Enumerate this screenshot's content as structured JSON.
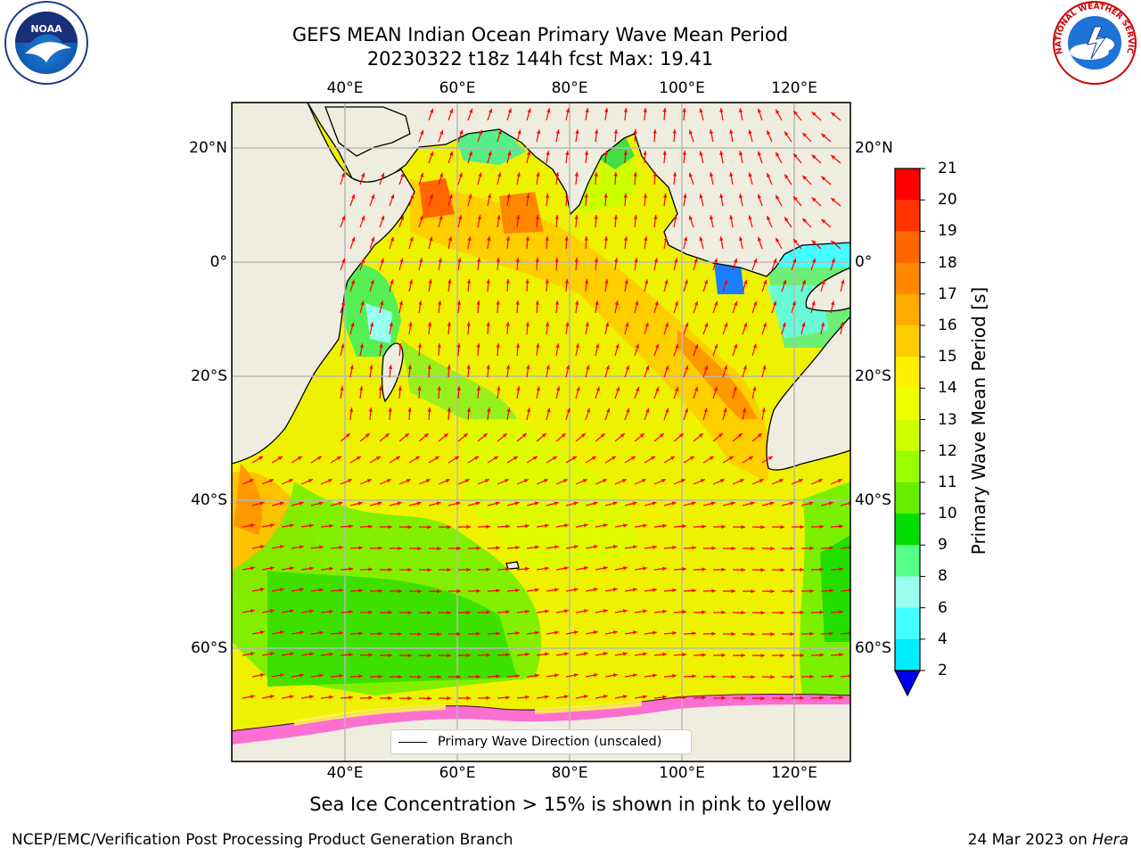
{
  "title": {
    "line1": "GEFS MEAN Indian Ocean Primary Wave Mean Period",
    "line2": "20230322 t18z 144h fcst   Max: 19.41"
  },
  "axes": {
    "lon_ticks": [
      "40°E",
      "60°E",
      "80°E",
      "100°E",
      "120°E"
    ],
    "lat_ticks": [
      "20°N",
      "0°",
      "20°S",
      "40°S",
      "60°S"
    ]
  },
  "colorbar": {
    "label": "Primary Wave Mean Period [s]",
    "ticks": [
      "21",
      "20",
      "19",
      "18",
      "17",
      "16",
      "15",
      "14",
      "13",
      "12",
      "11",
      "10",
      "9",
      "8",
      "6",
      "4",
      "2"
    ],
    "colors": [
      "#ff0000",
      "#ff3300",
      "#ff6600",
      "#ff8800",
      "#ffaa00",
      "#ffcc00",
      "#ffee00",
      "#eeff00",
      "#ccff00",
      "#99ff00",
      "#66ee00",
      "#00dd00",
      "#55ff88",
      "#99ffee",
      "#44ffff",
      "#00eeff",
      "#0077ff"
    ],
    "extend_color": "#0000ee"
  },
  "legend": {
    "label": "Primary Wave Direction (unscaled)"
  },
  "caption": "Sea Ice Concentration > 15% is shown in pink to yellow",
  "footer": {
    "left": "NCEP/EMC/Verification Post Processing Product Generation Branch",
    "date": "24 Mar 2023 on",
    "machine": "Hera"
  },
  "logos": {
    "noaa": "NOAA",
    "nws": "NATIONAL WEATHER SERVICE"
  },
  "colors": {
    "land": "#efeddf",
    "arrow": "#ff0000",
    "grid": "#b8b8b8"
  }
}
